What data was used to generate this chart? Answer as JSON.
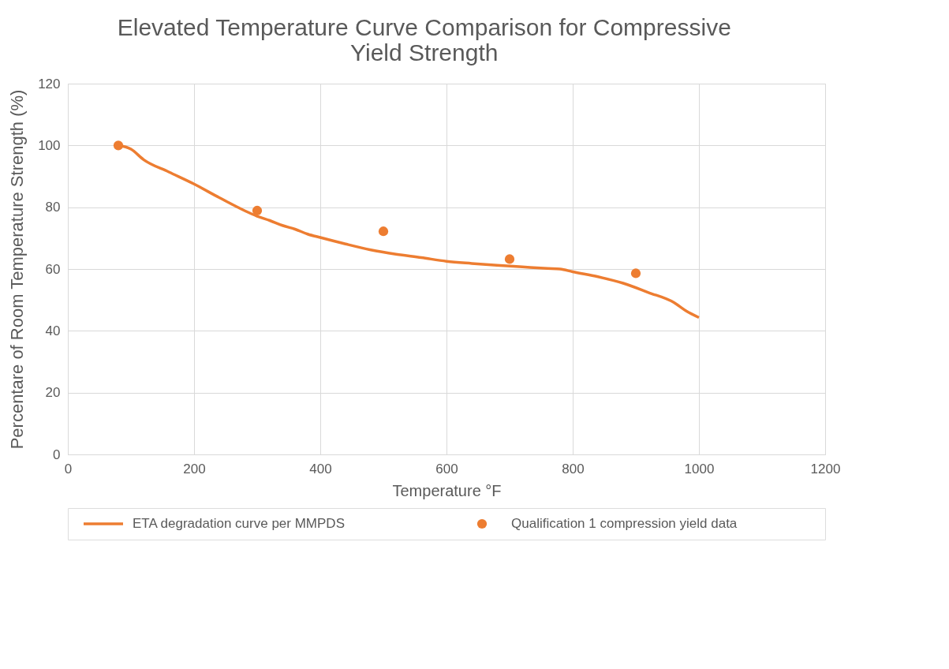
{
  "chart_data": {
    "type": "line",
    "title": [
      "Elevated Temperature Curve Comparison for Compressive",
      "Yield Strength"
    ],
    "xlabel": "Temperature °F",
    "ylabel": "Percentare of Room Temperature Strength (%)",
    "xlim": [
      0,
      1200
    ],
    "xticks": [
      0,
      200,
      400,
      600,
      800,
      1000,
      1200
    ],
    "ylim": [
      0,
      120
    ],
    "yticks": [
      0,
      20,
      40,
      60,
      80,
      100,
      120
    ],
    "grid": true,
    "legend": "bottom",
    "series": [
      {
        "name": "ETA degradation curve per MMPDS",
        "color": "#ed7d31",
        "marker": "none",
        "line_style": "solid",
        "x": [
          80,
          100,
          120,
          160,
          200,
          240,
          280,
          300,
          320,
          340,
          360,
          380,
          400,
          440,
          480,
          520,
          560,
          600,
          640,
          680,
          720,
          760,
          780,
          800,
          840,
          880,
          920,
          960,
          980,
          1000
        ],
        "values": [
          100,
          98.8,
          95.4,
          91.4,
          87.5,
          83.1,
          78.9,
          77.1,
          75.7,
          74.1,
          72.9,
          71.3,
          70.2,
          68.1,
          66.2,
          64.8,
          63.7,
          62.5,
          61.8,
          61.2,
          60.7,
          60.2,
          60.0,
          59.1,
          57.5,
          55.4,
          52.4,
          49.2,
          46.4,
          44.3
        ]
      },
      {
        "name": "Qualification 1 compression yield data",
        "type": "scatter",
        "color": "#ed7d31",
        "marker": "circle",
        "x": [
          80,
          300,
          500,
          700,
          900
        ],
        "values": [
          100,
          78.9,
          72.2,
          63.2,
          58.6
        ]
      }
    ]
  }
}
